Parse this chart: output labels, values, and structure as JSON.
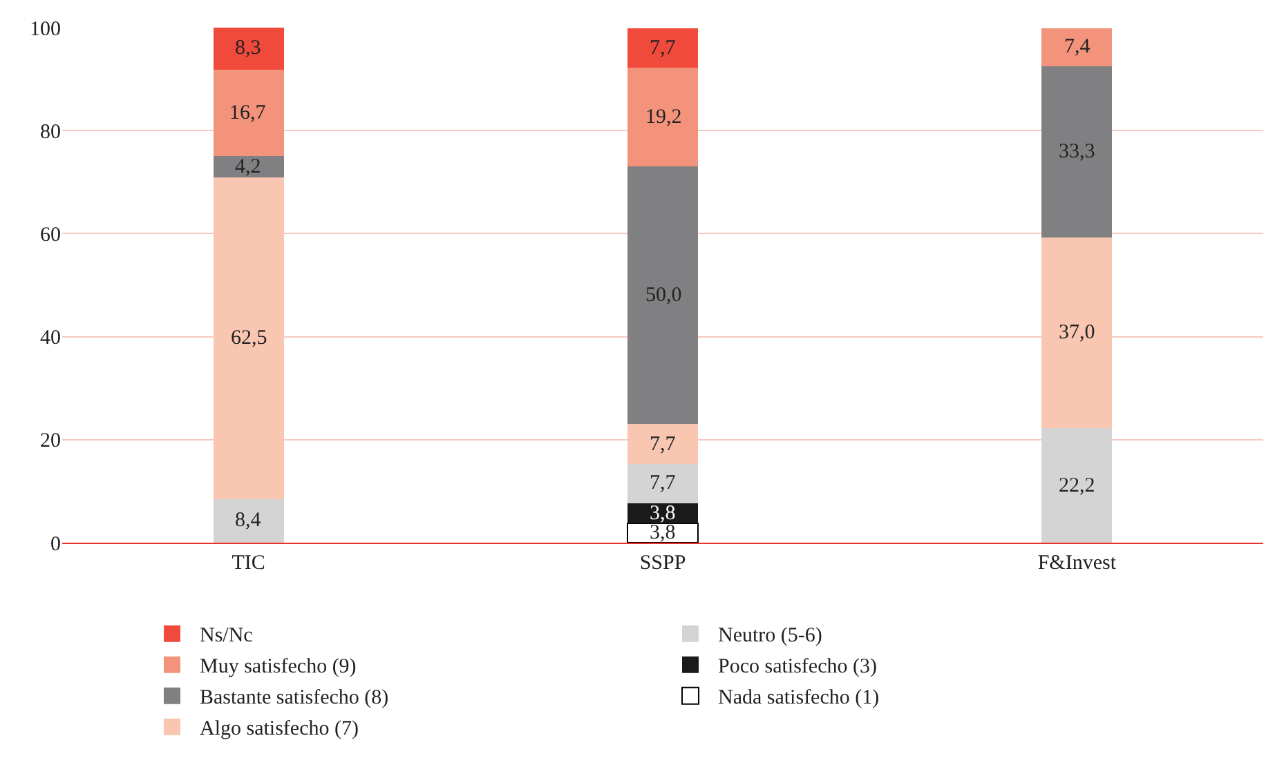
{
  "chart_data": {
    "type": "bar",
    "stacked": true,
    "categories": [
      "TIC",
      "SSPP",
      "F&Invest"
    ],
    "ylim": [
      0,
      100
    ],
    "yticks": [
      0,
      20,
      40,
      60,
      80,
      100
    ],
    "grid": "y",
    "legend": "bottom",
    "series": [
      {
        "name": "Nada satisfecho (1)",
        "color": "#ffffff",
        "values": [
          null,
          3.8,
          null
        ],
        "value_labels": [
          null,
          "3,8",
          null
        ]
      },
      {
        "name": "Poco satisfecho (3)",
        "color": "#1a1a1a",
        "values": [
          null,
          3.8,
          null
        ],
        "value_labels": [
          null,
          "3,8",
          null
        ]
      },
      {
        "name": "Neutro (5-6)",
        "color": "#d4d4d4",
        "values": [
          8.4,
          7.7,
          22.2
        ],
        "value_labels": [
          "8,4",
          "7,7",
          "22,2"
        ]
      },
      {
        "name": "Algo satisfecho (7)",
        "color": "#f9c6b2",
        "values": [
          62.5,
          7.7,
          37.0
        ],
        "value_labels": [
          "62,5",
          "7,7",
          "37,0"
        ]
      },
      {
        "name": "Bastante satisfecho (8)",
        "color": "#808083",
        "values": [
          4.2,
          50.0,
          33.3
        ],
        "value_labels": [
          "4,2",
          "50,0",
          "33,3"
        ]
      },
      {
        "name": "Muy satisfecho (9)",
        "color": "#f4937b",
        "values": [
          16.7,
          19.2,
          7.4
        ],
        "value_labels": [
          "16,7",
          "19,2",
          "7,4"
        ]
      },
      {
        "name": "Ns/Nc",
        "color": "#f04a3c",
        "values": [
          8.3,
          7.7,
          null
        ],
        "value_labels": [
          "8,3",
          "7,7",
          null
        ]
      }
    ]
  }
}
